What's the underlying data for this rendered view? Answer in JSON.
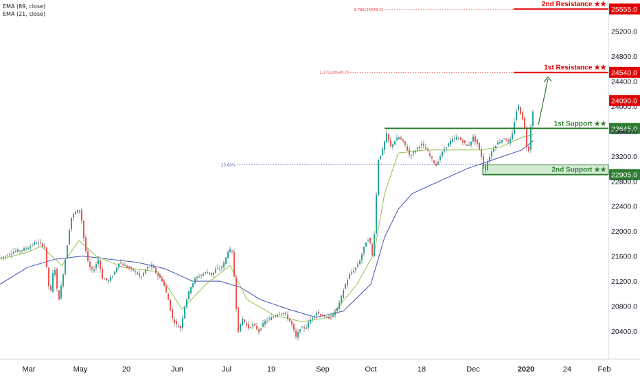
{
  "indicators": {
    "ema_slow_label": "EMA (89, close)",
    "ema_fast_label": "EMA (21, close)"
  },
  "colors": {
    "background": "#ffffff",
    "up_candle": "#26a69a",
    "down_candle": "#ef5350",
    "wick": "#6b6b6b",
    "ema_slow": "#3f51b5",
    "ema_fast": "#8bc34a",
    "resistance": "#e00000",
    "support": "#2e7d32",
    "support_zone_fill": "#c8e6c9",
    "fib_line": "#e53935",
    "fib_ret_line": "#3f51b5",
    "axis_text": "#131722",
    "projection_arrow": "#2e7d32"
  },
  "chart_data": {
    "type": "candlestick",
    "title": "",
    "xlabel": "",
    "ylabel": "",
    "ylim": [
      19950,
      25700
    ],
    "x_ticks": [
      "Mar",
      "May",
      "20",
      "Jun",
      "Jul",
      "19",
      "Sep",
      "Oct",
      "18",
      "Dec",
      "2020",
      "24",
      "Feb"
    ],
    "y_ticks": [
      20400.0,
      20800.0,
      21200.0,
      21600.0,
      22000.0,
      22400.0,
      22800.0,
      23200.0,
      23600.0,
      24000.0,
      24400.0,
      24800.0,
      25200.0
    ],
    "y_tick_labels": [
      "20400.0",
      "20800.0",
      "21200.0",
      "21600.0",
      "22000.0",
      "22400.0",
      "22800.0",
      "23200.0",
      "23600.0",
      "24000.0",
      "24400.0",
      "24800.0",
      "25200.0"
    ],
    "current_price": {
      "value": 24090.0,
      "label": "24090.0"
    },
    "price_path": [
      {
        "x": 0,
        "y": 21570
      },
      {
        "x": 10,
        "y": 21620
      },
      {
        "x": 20,
        "y": 21680
      },
      {
        "x": 32,
        "y": 21700
      },
      {
        "x": 42,
        "y": 21750
      },
      {
        "x": 50,
        "y": 21820
      },
      {
        "x": 58,
        "y": 21800
      },
      {
        "x": 64,
        "y": 21750
      },
      {
        "x": 68,
        "y": 21300
      },
      {
        "x": 72,
        "y": 20950
      },
      {
        "x": 78,
        "y": 21500
      },
      {
        "x": 84,
        "y": 20850
      },
      {
        "x": 90,
        "y": 21250
      },
      {
        "x": 96,
        "y": 21700
      },
      {
        "x": 102,
        "y": 22200
      },
      {
        "x": 108,
        "y": 22300
      },
      {
        "x": 116,
        "y": 22350
      },
      {
        "x": 122,
        "y": 21800
      },
      {
        "x": 128,
        "y": 21450
      },
      {
        "x": 134,
        "y": 21350
      },
      {
        "x": 142,
        "y": 21550
      },
      {
        "x": 148,
        "y": 21250
      },
      {
        "x": 156,
        "y": 21200
      },
      {
        "x": 164,
        "y": 21300
      },
      {
        "x": 172,
        "y": 21500
      },
      {
        "x": 180,
        "y": 21450
      },
      {
        "x": 188,
        "y": 21400
      },
      {
        "x": 196,
        "y": 21350
      },
      {
        "x": 204,
        "y": 21250
      },
      {
        "x": 212,
        "y": 21400
      },
      {
        "x": 220,
        "y": 21450
      },
      {
        "x": 228,
        "y": 21300
      },
      {
        "x": 236,
        "y": 21200
      },
      {
        "x": 244,
        "y": 20900
      },
      {
        "x": 250,
        "y": 20600
      },
      {
        "x": 256,
        "y": 20500
      },
      {
        "x": 262,
        "y": 20450
      },
      {
        "x": 268,
        "y": 20800
      },
      {
        "x": 276,
        "y": 21100
      },
      {
        "x": 284,
        "y": 21250
      },
      {
        "x": 292,
        "y": 21300
      },
      {
        "x": 300,
        "y": 21350
      },
      {
        "x": 308,
        "y": 21300
      },
      {
        "x": 314,
        "y": 21400
      },
      {
        "x": 320,
        "y": 21400
      },
      {
        "x": 326,
        "y": 21500
      },
      {
        "x": 332,
        "y": 21720
      },
      {
        "x": 338,
        "y": 21650
      },
      {
        "x": 342,
        "y": 20900
      },
      {
        "x": 346,
        "y": 20400
      },
      {
        "x": 352,
        "y": 20600
      },
      {
        "x": 360,
        "y": 20450
      },
      {
        "x": 368,
        "y": 20500
      },
      {
        "x": 376,
        "y": 20400
      },
      {
        "x": 384,
        "y": 20550
      },
      {
        "x": 392,
        "y": 20600
      },
      {
        "x": 400,
        "y": 20650
      },
      {
        "x": 408,
        "y": 20700
      },
      {
        "x": 416,
        "y": 20650
      },
      {
        "x": 424,
        "y": 20500
      },
      {
        "x": 430,
        "y": 20300
      },
      {
        "x": 436,
        "y": 20450
      },
      {
        "x": 444,
        "y": 20450
      },
      {
        "x": 452,
        "y": 20600
      },
      {
        "x": 460,
        "y": 20700
      },
      {
        "x": 468,
        "y": 20650
      },
      {
        "x": 476,
        "y": 20600
      },
      {
        "x": 484,
        "y": 20650
      },
      {
        "x": 492,
        "y": 20800
      },
      {
        "x": 500,
        "y": 21100
      },
      {
        "x": 508,
        "y": 21300
      },
      {
        "x": 516,
        "y": 21400
      },
      {
        "x": 522,
        "y": 21500
      },
      {
        "x": 528,
        "y": 21700
      },
      {
        "x": 534,
        "y": 21900
      },
      {
        "x": 538,
        "y": 21800
      },
      {
        "x": 542,
        "y": 21550
      },
      {
        "x": 546,
        "y": 22400
      },
      {
        "x": 550,
        "y": 23150
      },
      {
        "x": 556,
        "y": 23300
      },
      {
        "x": 562,
        "y": 23550
      },
      {
        "x": 568,
        "y": 23350
      },
      {
        "x": 574,
        "y": 23450
      },
      {
        "x": 580,
        "y": 23500
      },
      {
        "x": 588,
        "y": 23400
      },
      {
        "x": 596,
        "y": 23200
      },
      {
        "x": 604,
        "y": 23300
      },
      {
        "x": 612,
        "y": 23400
      },
      {
        "x": 620,
        "y": 23300
      },
      {
        "x": 628,
        "y": 23150
      },
      {
        "x": 634,
        "y": 23050
      },
      {
        "x": 640,
        "y": 23200
      },
      {
        "x": 648,
        "y": 23350
      },
      {
        "x": 656,
        "y": 23450
      },
      {
        "x": 664,
        "y": 23500
      },
      {
        "x": 672,
        "y": 23450
      },
      {
        "x": 680,
        "y": 23350
      },
      {
        "x": 688,
        "y": 23500
      },
      {
        "x": 694,
        "y": 23400
      },
      {
        "x": 700,
        "y": 23200
      },
      {
        "x": 705,
        "y": 22950
      },
      {
        "x": 710,
        "y": 23150
      },
      {
        "x": 716,
        "y": 23300
      },
      {
        "x": 722,
        "y": 23400
      },
      {
        "x": 728,
        "y": 23450
      },
      {
        "x": 734,
        "y": 23500
      },
      {
        "x": 740,
        "y": 23400
      },
      {
        "x": 745,
        "y": 23550
      },
      {
        "x": 750,
        "y": 23900
      },
      {
        "x": 754,
        "y": 24000
      },
      {
        "x": 758,
        "y": 23850
      },
      {
        "x": 762,
        "y": 23750
      },
      {
        "x": 766,
        "y": 23350
      },
      {
        "x": 768,
        "y": 23150
      },
      {
        "x": 771,
        "y": 23600
      },
      {
        "x": 774,
        "y": 23850
      },
      {
        "x": 777,
        "y": 24090
      }
    ],
    "ema_fast": [
      {
        "x": 0,
        "y": 21550
      },
      {
        "x": 40,
        "y": 21660
      },
      {
        "x": 60,
        "y": 21760
      },
      {
        "x": 90,
        "y": 21450
      },
      {
        "x": 115,
        "y": 21850
      },
      {
        "x": 140,
        "y": 21600
      },
      {
        "x": 180,
        "y": 21420
      },
      {
        "x": 230,
        "y": 21350
      },
      {
        "x": 265,
        "y": 20750
      },
      {
        "x": 300,
        "y": 21150
      },
      {
        "x": 335,
        "y": 21450
      },
      {
        "x": 360,
        "y": 20900
      },
      {
        "x": 400,
        "y": 20650
      },
      {
        "x": 440,
        "y": 20550
      },
      {
        "x": 480,
        "y": 20620
      },
      {
        "x": 520,
        "y": 21150
      },
      {
        "x": 545,
        "y": 21650
      },
      {
        "x": 560,
        "y": 22600
      },
      {
        "x": 580,
        "y": 23250
      },
      {
        "x": 620,
        "y": 23300
      },
      {
        "x": 660,
        "y": 23300
      },
      {
        "x": 700,
        "y": 23300
      },
      {
        "x": 730,
        "y": 23350
      },
      {
        "x": 760,
        "y": 23500
      },
      {
        "x": 777,
        "y": 23550
      }
    ],
    "ema_slow": [
      {
        "x": 0,
        "y": 21150
      },
      {
        "x": 40,
        "y": 21420
      },
      {
        "x": 80,
        "y": 21550
      },
      {
        "x": 120,
        "y": 21600
      },
      {
        "x": 160,
        "y": 21550
      },
      {
        "x": 200,
        "y": 21500
      },
      {
        "x": 240,
        "y": 21400
      },
      {
        "x": 280,
        "y": 21200
      },
      {
        "x": 320,
        "y": 21200
      },
      {
        "x": 350,
        "y": 21100
      },
      {
        "x": 380,
        "y": 20900
      },
      {
        "x": 420,
        "y": 20750
      },
      {
        "x": 460,
        "y": 20620
      },
      {
        "x": 500,
        "y": 20720
      },
      {
        "x": 540,
        "y": 21150
      },
      {
        "x": 560,
        "y": 21900
      },
      {
        "x": 580,
        "y": 22350
      },
      {
        "x": 600,
        "y": 22600
      },
      {
        "x": 640,
        "y": 22800
      },
      {
        "x": 680,
        "y": 23000
      },
      {
        "x": 720,
        "y": 23150
      },
      {
        "x": 760,
        "y": 23300
      },
      {
        "x": 777,
        "y": 23450
      }
    ],
    "levels": [
      {
        "name": "resistance-2",
        "label": "2nd Resistance ★★",
        "value": 25555.0,
        "value_label": "25555.0",
        "type": "resistance"
      },
      {
        "name": "resistance-1",
        "label": "1st Resistance ★★",
        "value": 24540.0,
        "value_label": "24540.0",
        "type": "resistance"
      },
      {
        "name": "support-1",
        "label": "1st Support ★★",
        "value": 23645.0,
        "value_label": "23645.0",
        "type": "support"
      },
      {
        "name": "support-2",
        "label": "2nd Support ★★",
        "value": 22905.0,
        "value_label": "22905.0",
        "type": "support-zone"
      }
    ],
    "fib_annotations": [
      {
        "name": "fib-0786",
        "label": "0.786(25549.0)",
        "value": 25549.0
      },
      {
        "name": "fib-1272",
        "label": "1.272(24540.0)",
        "value": 24540.0
      },
      {
        "name": "fib-2360",
        "label": "23.60%",
        "value": 23060.0
      }
    ],
    "support_zone": {
      "top": 23060.0,
      "bottom": 22905.0
    },
    "grid": false,
    "legend": "top-left"
  }
}
